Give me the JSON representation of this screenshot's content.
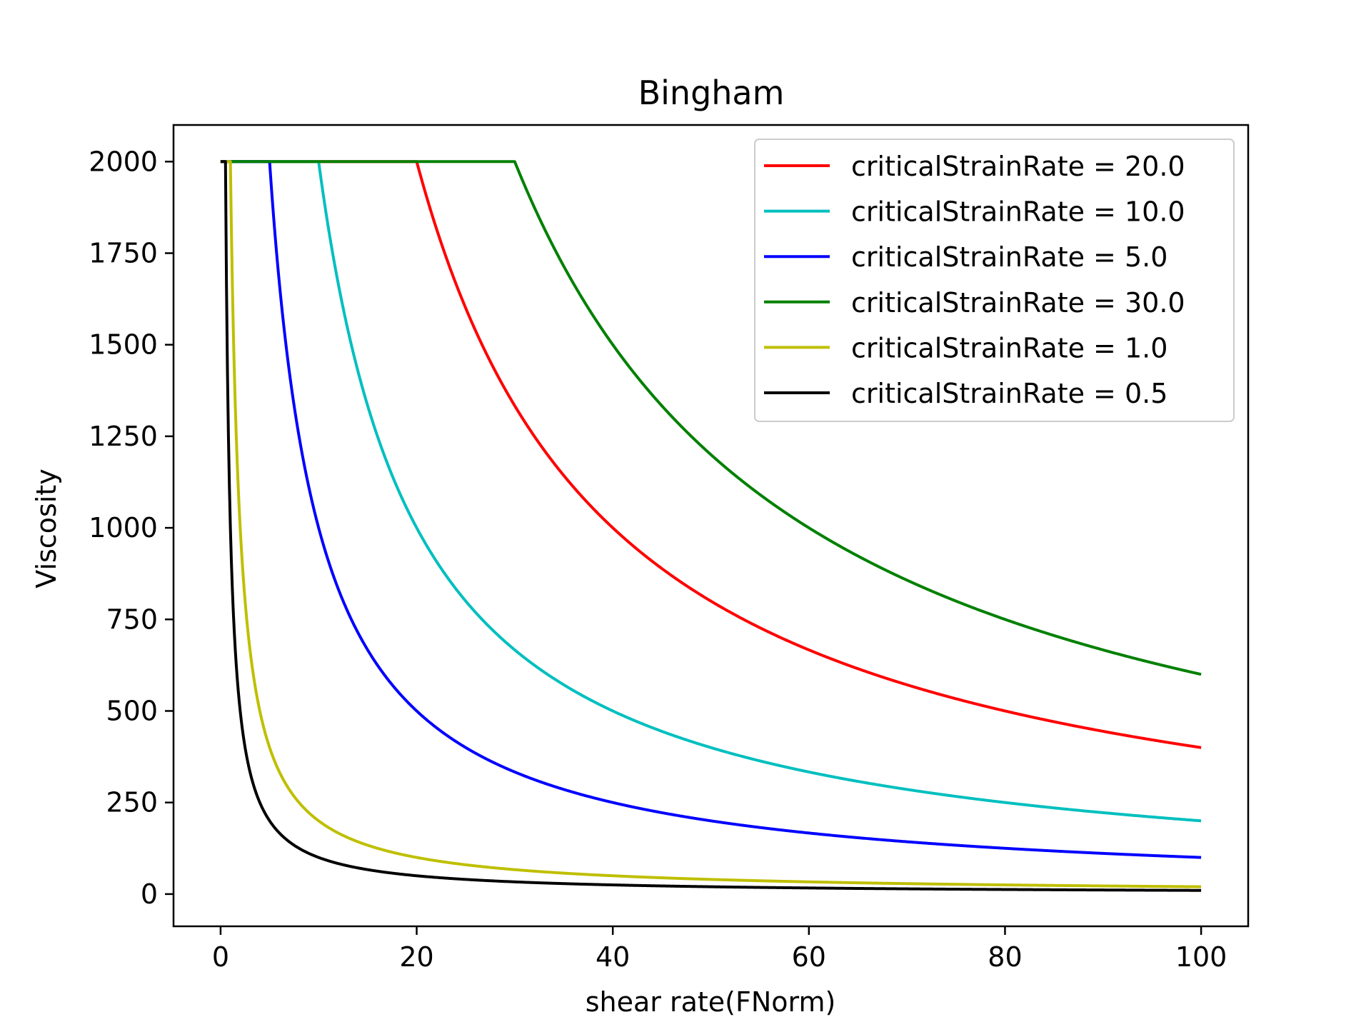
{
  "chart_data": {
    "type": "line",
    "title": "Bingham",
    "xlabel": "shear rate(FNorm)",
    "ylabel": "Viscosity",
    "xlim": [
      -4.8,
      104.8
    ],
    "ylim": [
      -88,
      2100
    ],
    "xticks": [
      0,
      20,
      40,
      60,
      80,
      100
    ],
    "yticks": [
      0,
      250,
      500,
      750,
      1000,
      1250,
      1500,
      1750,
      2000
    ],
    "grid": false,
    "legend_position": "top-right",
    "x_range": [
      0,
      100
    ],
    "max_viscosity": 2000,
    "series": [
      {
        "name": "criticalStrainRate = 20.0",
        "critical": 20.0,
        "color": "#ff0000"
      },
      {
        "name": "criticalStrainRate = 10.0",
        "critical": 10.0,
        "color": "#00bfbf"
      },
      {
        "name": "criticalStrainRate = 5.0",
        "critical": 5.0,
        "color": "#0000ff"
      },
      {
        "name": "criticalStrainRate = 30.0",
        "critical": 30.0,
        "color": "#008000"
      },
      {
        "name": "criticalStrainRate = 1.0",
        "critical": 1.0,
        "color": "#bfbf00"
      },
      {
        "name": "criticalStrainRate = 0.5",
        "critical": 0.5,
        "color": "#000000"
      }
    ]
  }
}
